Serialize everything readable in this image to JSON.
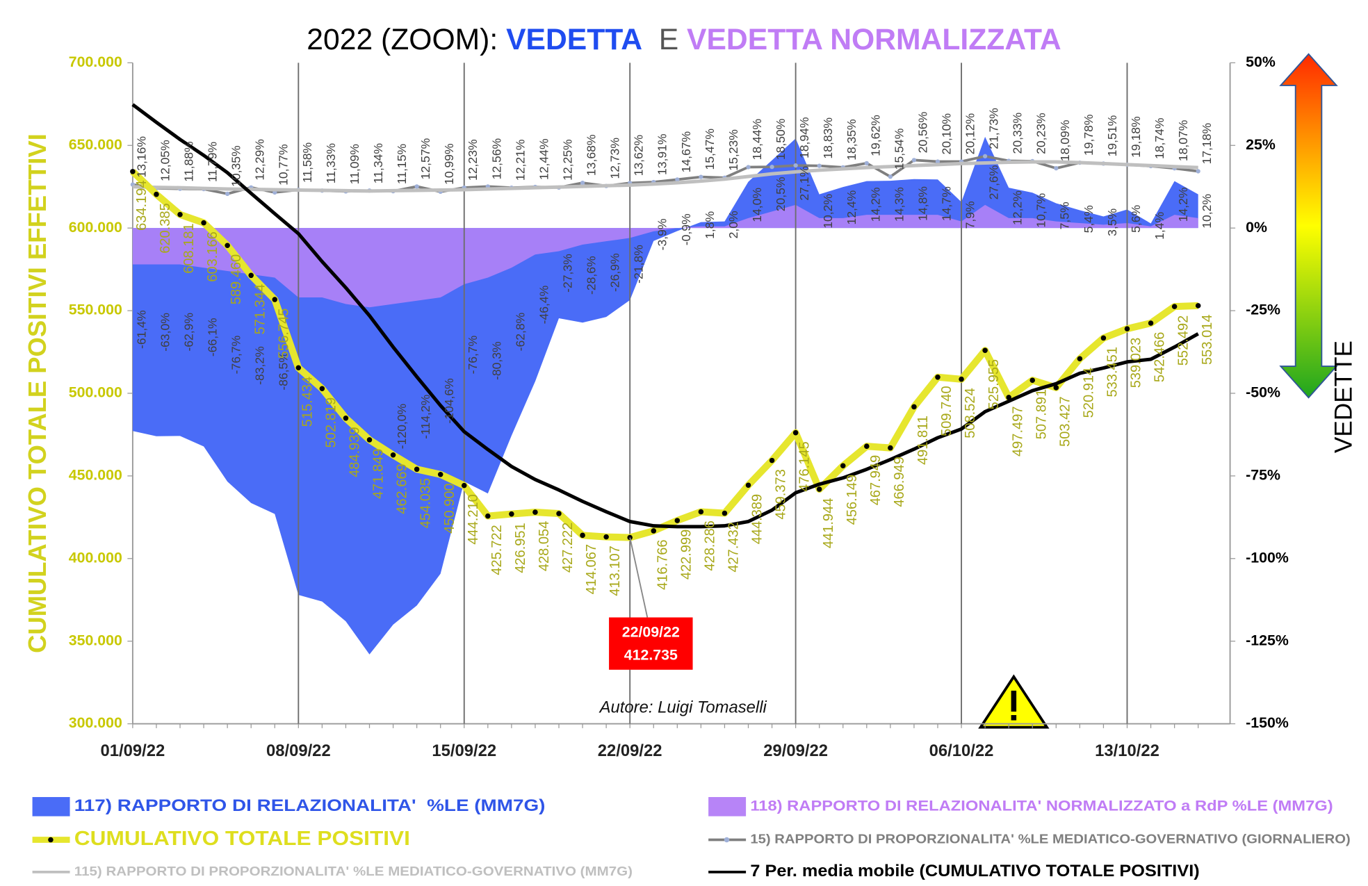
{
  "chart_data": {
    "type": "combo",
    "title_parts": [
      {
        "text": "2022 (ZOOM): ",
        "color": "#000000",
        "bold": false
      },
      {
        "text": "VEDETTA",
        "color": "#1f4cf0",
        "bold": true
      },
      {
        "text": "  E ",
        "color": "#555555",
        "bold": false
      },
      {
        "text": "VEDETTA NORMALIZZATA",
        "color": "#c07cf5",
        "bold": true
      }
    ],
    "y_label": "CUMULATIVO TOTALE POSITIVI EFFETTIVI",
    "y2_label": "VEDETTE",
    "categories": [
      "01/09/22",
      null,
      null,
      null,
      null,
      null,
      null,
      "08/09/22",
      null,
      null,
      null,
      null,
      null,
      null,
      "15/09/22",
      null,
      null,
      null,
      null,
      null,
      null,
      "22/09/22",
      null,
      null,
      null,
      null,
      null,
      null,
      "29/09/22",
      null,
      null,
      null,
      null,
      null,
      null,
      "06/10/22",
      null,
      null,
      null,
      null,
      null,
      null,
      "13/10/22",
      null,
      null,
      null
    ],
    "ylim": [
      300000,
      700000
    ],
    "yticks": [
      {
        "value": 300000,
        "label": "300.000"
      },
      {
        "value": 350000,
        "label": "350.000"
      },
      {
        "value": 400000,
        "label": "400.000"
      },
      {
        "value": 450000,
        "label": "450.000"
      },
      {
        "value": 500000,
        "label": "500.000"
      },
      {
        "value": 550000,
        "label": "550.000"
      },
      {
        "value": 600000,
        "label": "600.000"
      },
      {
        "value": 650000,
        "label": "650.000"
      },
      {
        "value": 700000,
        "label": "700.000"
      }
    ],
    "y2lim": [
      -150,
      50
    ],
    "y2ticks": [
      {
        "value": -150,
        "label": "-150%"
      },
      {
        "value": -125,
        "label": "-125%"
      },
      {
        "value": -100,
        "label": "-100%"
      },
      {
        "value": -75,
        "label": "-75%"
      },
      {
        "value": -50,
        "label": "-50%"
      },
      {
        "value": -25,
        "label": "-25%"
      },
      {
        "value": 0,
        "label": "0%"
      },
      {
        "value": 25,
        "label": "25%"
      },
      {
        "value": 50,
        "label": "50%"
      }
    ],
    "legend": "bottom",
    "series": [
      {
        "name": "117) RAPPORTO DI RELAZIONALITA'  %LE (MM7G)",
        "type": "area",
        "axis": "y2",
        "color": "#4a6cf7",
        "values": [
          -61.4,
          -63.0,
          -62.9,
          -66.1,
          -76.7,
          -83.2,
          -86.5,
          -111,
          -113,
          -119,
          -129,
          -120.0,
          -114.2,
          -104.6,
          -76.7,
          -80.3,
          -62.8,
          -46.4,
          -27.3,
          -28.6,
          -26.9,
          -21.8,
          -3.9,
          -0.9,
          1.8,
          2.0,
          14.0,
          20.5,
          27.1,
          10.2,
          12.4,
          14.2,
          14.3,
          14.8,
          14.7,
          7.9,
          27.6,
          12.2,
          10.7,
          7.5,
          5.4,
          3.5,
          5.6,
          1.4,
          14.2,
          10.2
        ],
        "value_labels": [
          "-61,4%",
          "-63,0%",
          "-62,9%",
          "-66,1%",
          "-76,7%",
          "-83,2%",
          "-86,5%",
          null,
          null,
          null,
          null,
          "-120,0%",
          "-114,2%",
          "-104,6%",
          "-76,7%",
          "-80,3%",
          "-62,8%",
          "-46,4%",
          "-27,3%",
          "-28,6%",
          "-26,9%",
          "-21,8%",
          "-3,9%",
          "-0,9%",
          "1,8%",
          "2,0%",
          "14,0%",
          "20,5%",
          "27,1%",
          "10,2%",
          "12,4%",
          "14,2%",
          "14,3%",
          "14,8%",
          "14,7%",
          "7,9%",
          "27,6%",
          "12,2%",
          "10,7%",
          "7,5%",
          "5,4%",
          "3,5%",
          "5,6%",
          "1,4%",
          "14,2%",
          "10,2%"
        ]
      },
      {
        "name": "118) RAPPORTO DI RELAZIONALITA' NORMALIZZATO a RdP %LE (MM7G)",
        "type": "area",
        "axis": "y2",
        "color": "#b784f7",
        "values": [
          -11,
          -11,
          -11,
          -12,
          -13,
          -14,
          -15,
          -21,
          -21,
          -23,
          -24,
          -23,
          -22,
          -21,
          -17,
          -15,
          -12,
          -8,
          -7,
          -5,
          -4,
          -3,
          -1,
          0,
          0.5,
          0.5,
          3,
          5,
          7,
          3,
          3,
          4,
          4,
          4,
          4,
          2,
          7,
          3,
          3,
          2,
          1.5,
          1,
          1.5,
          0.5,
          4,
          3
        ]
      },
      {
        "name": "CUMULATIVO TOTALE POSITIVI",
        "type": "line",
        "axis": "y",
        "color": "#e6e62e",
        "marker": true,
        "values": [
          634194,
          620385,
          608181,
          603166,
          589460,
          571344,
          556745,
          515434,
          502819,
          484939,
          471849,
          462669,
          454035,
          450900,
          444210,
          425722,
          426951,
          428054,
          427222,
          414067,
          413107,
          412735,
          416766,
          422999,
          428286,
          427432,
          444389,
          459373,
          476145,
          441944,
          456149,
          467949,
          466949,
          491811,
          509740,
          508524,
          525955,
          497497,
          507891,
          503427,
          520914,
          533451,
          539023,
          542466,
          552492,
          553014
        ],
        "value_labels": [
          "634.194",
          "620.385",
          "608.181",
          "603.166",
          "589.460",
          "571.344",
          "556.745",
          "515.434",
          "502.819",
          "484.939",
          "471.849",
          "462.669",
          "454.035",
          "450.900",
          "444.210",
          "425.722",
          "426.951",
          "428.054",
          "427.222",
          "414.067",
          "413.107",
          null,
          "416.766",
          "422.999",
          "428.286",
          "427.432",
          "444.389",
          "459.373",
          "476.145",
          "441.944",
          "456.149",
          "467.949",
          "466.949",
          "491.811",
          "509.740",
          "508.524",
          "525.955",
          "497.497",
          "507.891",
          "503.427",
          "520.914",
          "533.451",
          "539.023",
          "542.466",
          "552.492",
          "553.014"
        ]
      },
      {
        "name": "15) RAPPORTO DI PROPORZIONALITA' %LE MEDIATICO-GOVERNATIVO (GIORNALIERO)",
        "type": "line",
        "axis": "y2",
        "color": "#7f7f7f",
        "marker": true,
        "values": [
          13.16,
          12.05,
          11.88,
          11.79,
          10.35,
          12.29,
          10.77,
          11.58,
          11.33,
          11.09,
          11.34,
          11.15,
          12.57,
          10.99,
          12.23,
          12.56,
          12.21,
          12.44,
          12.25,
          13.68,
          12.73,
          13.62,
          13.91,
          14.67,
          15.47,
          15.23,
          18.44,
          18.5,
          18.94,
          18.83,
          18.35,
          19.62,
          15.54,
          20.56,
          20.1,
          20.12,
          21.73,
          20.33,
          20.23,
          18.09,
          19.78,
          19.51,
          19.18,
          18.74,
          18.07,
          17.18
        ],
        "value_labels": [
          "13,16%",
          "12,05%",
          "11,88%",
          "11,79%",
          "10,35%",
          "12,29%",
          "10,77%",
          "11,58%",
          "11,33%",
          "11,09%",
          "11,34%",
          "11,15%",
          "12,57%",
          "10,99%",
          "12,23%",
          "12,56%",
          "12,21%",
          "12,44%",
          "12,25%",
          "13,68%",
          "12,73%",
          "13,62%",
          "13,91%",
          "14,67%",
          "15,47%",
          "15,23%",
          "18,44%",
          "18,50%",
          "18,94%",
          "18,83%",
          "18,35%",
          "19,62%",
          "15,54%",
          "20,56%",
          "20,10%",
          "20,12%",
          "21,73%",
          "20,33%",
          "20,23%",
          "18,09%",
          "19,78%",
          "19,51%",
          "19,18%",
          "18,74%",
          "18,07%",
          "17,18%"
        ]
      },
      {
        "name": "115) RAPPORTO DI PROPORZIONALITA' %LE MEDIATICO-GOVERNATIVO (MM7G)",
        "type": "line",
        "axis": "y2",
        "color": "#bfbfbf",
        "values": [
          12.5,
          12.3,
          12.2,
          12.0,
          11.8,
          11.7,
          11.6,
          11.5,
          11.4,
          11.3,
          11.2,
          11.3,
          11.4,
          11.5,
          11.6,
          11.8,
          12.0,
          12.2,
          12.4,
          12.6,
          12.8,
          13.0,
          13.3,
          13.7,
          14.2,
          14.8,
          15.6,
          16.4,
          17.0,
          17.5,
          17.9,
          18.3,
          18.6,
          18.9,
          19.2,
          19.5,
          19.7,
          19.9,
          20.0,
          20.0,
          19.8,
          19.5,
          19.2,
          18.9,
          18.6,
          18.3
        ]
      },
      {
        "name": "7 Per. media mobile (CUMULATIVO TOTALE POSITIVI)",
        "type": "line",
        "axis": "y",
        "color": "#000000",
        "values": [
          674700,
          664000,
          653600,
          644000,
          633500,
          621000,
          608700,
          596600,
          579700,
          563900,
          547000,
          528000,
          510000,
          492600,
          476800,
          466000,
          455700,
          447800,
          441500,
          434600,
          428300,
          422400,
          419800,
          419300,
          419300,
          419800,
          422400,
          429300,
          439800,
          445000,
          448800,
          454000,
          459900,
          466200,
          473100,
          478400,
          488900,
          495200,
          501600,
          505800,
          512100,
          515300,
          519000,
          520600,
          528000,
          536000
        ]
      }
    ],
    "annotations": [
      {
        "lines": [
          "22/09/22",
          "412.735"
        ]
      },
      {
        "text": "Autore: Luigi Tomaselli"
      }
    ]
  }
}
